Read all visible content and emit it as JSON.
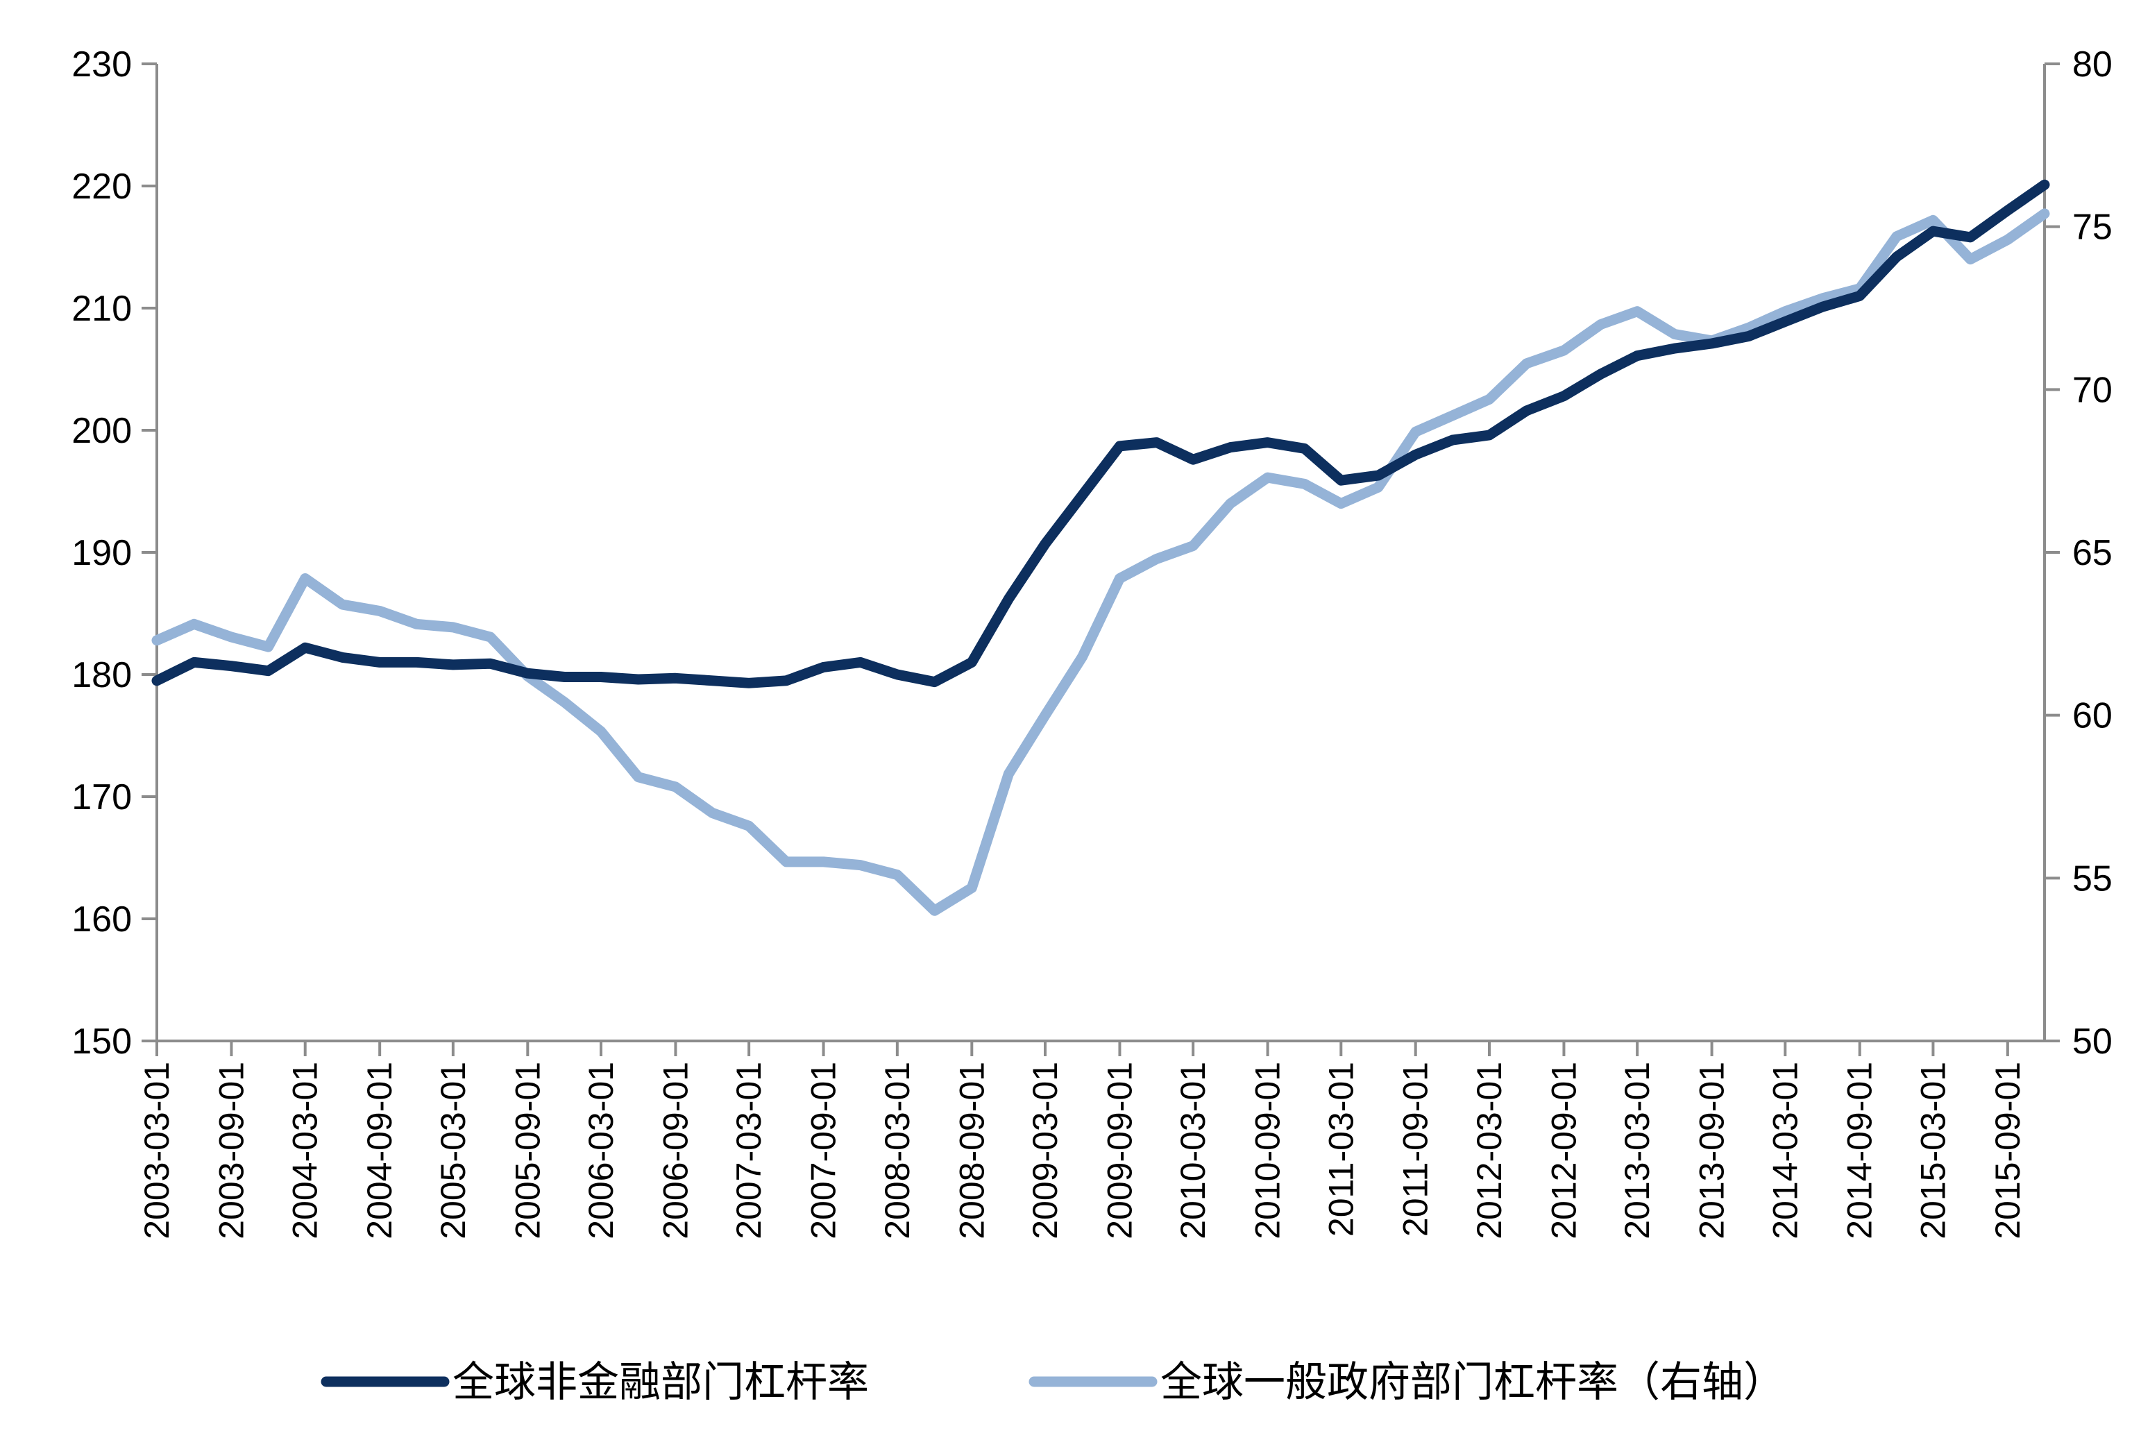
{
  "chart_data": {
    "type": "line",
    "title": "",
    "xlabel": "",
    "ylabel_left": "",
    "ylabel_right": "",
    "ylim_left": [
      150,
      230
    ],
    "yticks_left": [
      "150",
      "160",
      "170",
      "180",
      "190",
      "200",
      "210",
      "220",
      "230"
    ],
    "ylim_right": [
      50,
      80
    ],
    "yticks_right": [
      "50",
      "55",
      "60",
      "65",
      "70",
      "75",
      "80"
    ],
    "x_tick_labels": [
      "2003-03-01",
      "2003-09-01",
      "2004-03-01",
      "2004-09-01",
      "2005-03-01",
      "2005-09-01",
      "2006-03-01",
      "2006-09-01",
      "2007-03-01",
      "2007-09-01",
      "2008-03-01",
      "2008-09-01",
      "2009-03-01",
      "2009-09-01",
      "2010-03-01",
      "2010-09-01",
      "2011-03-01",
      "2011-09-01",
      "2012-03-01",
      "2012-09-01",
      "2013-03-01",
      "2013-09-01",
      "2014-03-01",
      "2014-09-01",
      "2015-03-01",
      "2015-09-01"
    ],
    "x": [
      "2003-03-01",
      "2003-06-01",
      "2003-09-01",
      "2003-12-01",
      "2004-03-01",
      "2004-06-01",
      "2004-09-01",
      "2004-12-01",
      "2005-03-01",
      "2005-06-01",
      "2005-09-01",
      "2005-12-01",
      "2006-03-01",
      "2006-06-01",
      "2006-09-01",
      "2006-12-01",
      "2007-03-01",
      "2007-06-01",
      "2007-09-01",
      "2007-12-01",
      "2008-03-01",
      "2008-06-01",
      "2008-09-01",
      "2008-12-01",
      "2009-03-01",
      "2009-06-01",
      "2009-09-01",
      "2009-12-01",
      "2010-03-01",
      "2010-06-01",
      "2010-09-01",
      "2010-12-01",
      "2011-03-01",
      "2011-06-01",
      "2011-09-01",
      "2011-12-01",
      "2012-03-01",
      "2012-06-01",
      "2012-09-01",
      "2012-12-01",
      "2013-03-01",
      "2013-06-01",
      "2013-09-01",
      "2013-12-01",
      "2014-03-01",
      "2014-06-01",
      "2014-09-01",
      "2014-12-01",
      "2015-03-01",
      "2015-06-01",
      "2015-09-01",
      "2015-12-01"
    ],
    "series": [
      {
        "name": "全球非金融部门杠杆率",
        "axis": "left",
        "color": "#0d2f5e",
        "values": [
          179.5,
          181.0,
          180.7,
          180.3,
          182.2,
          181.4,
          181.0,
          181.0,
          180.8,
          180.9,
          180.1,
          179.8,
          179.8,
          179.6,
          179.7,
          179.5,
          179.3,
          179.5,
          180.6,
          181.0,
          180.0,
          179.4,
          181.0,
          186.2,
          190.7,
          194.7,
          198.7,
          199.0,
          197.6,
          198.6,
          199.0,
          198.5,
          195.9,
          196.3,
          198.0,
          199.2,
          199.6,
          201.6,
          202.8,
          204.6,
          206.1,
          206.7,
          207.1,
          207.7,
          208.9,
          210.1,
          211.0,
          214.2,
          216.3,
          215.8,
          218.0,
          220.1
        ]
      },
      {
        "name": "全球一般政府部门杠杆率（右轴）",
        "axis": "right",
        "color": "#95b3d7",
        "values": [
          62.3,
          62.8,
          62.4,
          62.1,
          64.2,
          63.4,
          63.2,
          62.8,
          62.7,
          62.4,
          61.2,
          60.4,
          59.5,
          58.1,
          57.8,
          57.0,
          56.6,
          55.5,
          55.5,
          55.4,
          55.1,
          54.0,
          54.7,
          58.2,
          60.0,
          61.8,
          64.2,
          64.8,
          65.2,
          66.5,
          67.3,
          67.1,
          66.5,
          67.0,
          68.7,
          69.2,
          69.7,
          70.8,
          71.2,
          72.0,
          72.4,
          71.7,
          71.5,
          71.9,
          72.4,
          72.8,
          73.1,
          74.7,
          75.2,
          74.0,
          74.6,
          75.4
        ]
      }
    ],
    "grid": false,
    "legend_position": "bottom"
  }
}
